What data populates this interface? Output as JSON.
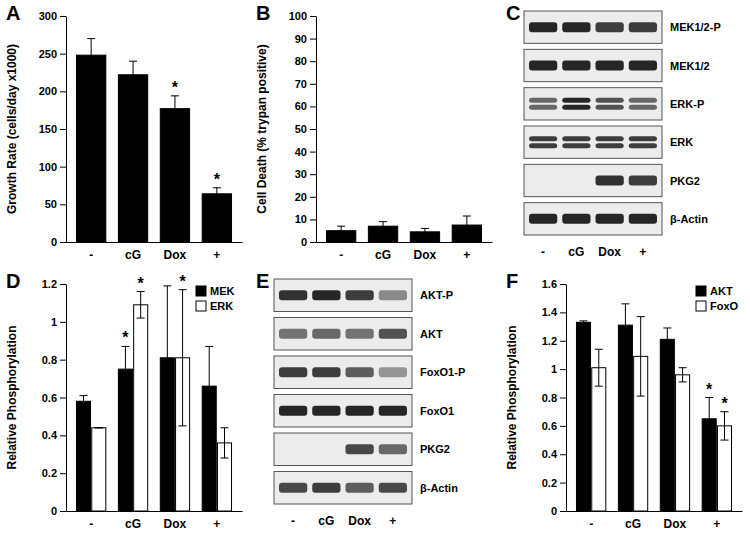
{
  "chart_data": [
    {
      "type": "bar",
      "title": "A",
      "y_label": "Growth Rate (cells/day x1000)",
      "categories": [
        "-",
        "cG",
        "Dox",
        "+"
      ],
      "values": [
        248,
        222,
        177,
        64
      ],
      "errors": [
        22,
        18,
        17,
        8
      ],
      "significance": [
        null,
        null,
        "*",
        "*"
      ],
      "color": "#000000",
      "ylim": [
        0,
        300
      ],
      "yticks": [
        0,
        50,
        100,
        150,
        200,
        250,
        300
      ]
    },
    {
      "type": "bar",
      "title": "B",
      "y_label": "Cell Death (% trypan positive)",
      "categories": [
        "-",
        "cG",
        "Dox",
        "+"
      ],
      "values": [
        5,
        7,
        4.5,
        7.5
      ],
      "errors": [
        2,
        2,
        1.5,
        4
      ],
      "color": "#000000",
      "ylim": [
        0,
        100
      ],
      "yticks": [
        0,
        10,
        20,
        30,
        40,
        50,
        60,
        70,
        80,
        90,
        100
      ]
    },
    {
      "type": "blot",
      "title": "C",
      "categories": [
        "-",
        "cG",
        "Dox",
        "+"
      ],
      "color": "#111111",
      "series": [
        {
          "name": "MEK1/2-P",
          "marker": "band",
          "values": [
            0.9,
            0.9,
            0.8,
            0.8
          ]
        },
        {
          "name": "MEK1/2",
          "marker": "band",
          "values": [
            0.9,
            0.9,
            0.9,
            0.9
          ]
        },
        {
          "name": "ERK-P",
          "marker": "doublet",
          "values": [
            0.6,
            0.9,
            0.7,
            0.6
          ]
        },
        {
          "name": "ERK",
          "marker": "doublet",
          "values": [
            0.8,
            0.8,
            0.8,
            0.8
          ]
        },
        {
          "name": "PKG2",
          "marker": "band",
          "values": [
            0,
            0,
            0.85,
            0.8
          ]
        },
        {
          "name": "β-Actin",
          "marker": "band",
          "values": [
            0.9,
            0.9,
            0.9,
            0.9
          ]
        }
      ]
    },
    {
      "type": "bar",
      "title": "D",
      "y_label": "Relative Phosphorylation",
      "categories": [
        "-",
        "cG",
        "Dox",
        "+"
      ],
      "legend": "top-right",
      "series": [
        {
          "name": "MEK",
          "color": "#000000",
          "values": [
            0.58,
            0.75,
            0.81,
            0.66
          ],
          "errors": [
            0.03,
            0.12,
            0.38,
            0.21
          ],
          "significance": [
            null,
            "*",
            null,
            null
          ]
        },
        {
          "name": "ERK",
          "color": "#ffffff",
          "values": [
            0.44,
            1.09,
            0.81,
            0.36
          ],
          "errors": [
            0,
            0.07,
            0.36,
            0.08
          ],
          "significance": [
            null,
            "*",
            "*",
            null
          ]
        }
      ],
      "ylim": [
        0,
        1.2
      ],
      "yticks": [
        0,
        0.2,
        0.4,
        0.6,
        0.8,
        1,
        1.2
      ]
    },
    {
      "type": "blot",
      "title": "E",
      "categories": [
        "-",
        "cG",
        "Dox",
        "+"
      ],
      "color": "#111111",
      "series": [
        {
          "name": "AKT-P",
          "marker": "band",
          "values": [
            0.85,
            0.9,
            0.8,
            0.45
          ]
        },
        {
          "name": "AKT",
          "marker": "band",
          "values": [
            0.55,
            0.6,
            0.55,
            0.7
          ]
        },
        {
          "name": "FoxO1-P",
          "marker": "band",
          "values": [
            0.8,
            0.8,
            0.65,
            0.4
          ]
        },
        {
          "name": "FoxO1",
          "marker": "band",
          "values": [
            0.9,
            0.9,
            0.9,
            0.9
          ]
        },
        {
          "name": "PKG2",
          "marker": "band",
          "values": [
            0,
            0,
            0.75,
            0.6
          ]
        },
        {
          "name": "β-Actin",
          "marker": "band",
          "values": [
            0.75,
            0.8,
            0.65,
            0.75
          ]
        }
      ]
    },
    {
      "type": "bar",
      "title": "F",
      "y_label": "Relative Phosphorylation",
      "categories": [
        "-",
        "cG",
        "Dox",
        "+"
      ],
      "legend": "top-right",
      "series": [
        {
          "name": "AKT",
          "color": "#000000",
          "values": [
            1.33,
            1.31,
            1.21,
            0.65
          ],
          "errors": [
            0.01,
            0.15,
            0.08,
            0.15
          ],
          "significance": [
            null,
            null,
            null,
            "*"
          ]
        },
        {
          "name": "FoxO",
          "color": "#ffffff",
          "values": [
            1.01,
            1.09,
            0.96,
            0.6
          ],
          "errors": [
            0.13,
            0.28,
            0.05,
            0.1
          ],
          "significance": [
            null,
            null,
            null,
            "*"
          ]
        }
      ],
      "ylim": [
        0,
        1.6
      ],
      "yticks": [
        0,
        0.2,
        0.4,
        0.6,
        0.8,
        1,
        1.2,
        1.4,
        1.6
      ]
    }
  ]
}
